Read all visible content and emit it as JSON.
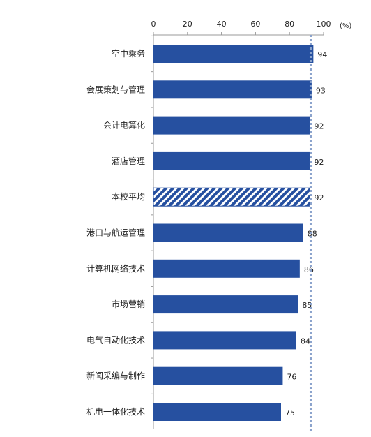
{
  "chart_data": {
    "type": "bar",
    "orientation": "horizontal",
    "unit": "(%)",
    "xlim": [
      0,
      100
    ],
    "ticks": [
      0,
      20,
      40,
      60,
      80,
      100
    ],
    "grid": false,
    "reference_line": 92,
    "categories": [
      "空中乘务",
      "会展策划与管理",
      "会计电算化",
      "酒店管理",
      "本校平均",
      "港口与航运管理",
      "计算机网络技术",
      "市场营销",
      "电气自动化技术",
      "新闻采编与制作",
      "机电一体化技术"
    ],
    "values": [
      94,
      93,
      92,
      92,
      92,
      88,
      86,
      85,
      84,
      76,
      75
    ],
    "highlight": "本校平均",
    "colors": {
      "bar": "#2650A0",
      "highlight_stripe": "#2650A0",
      "reference": "#8BA3CC"
    }
  }
}
